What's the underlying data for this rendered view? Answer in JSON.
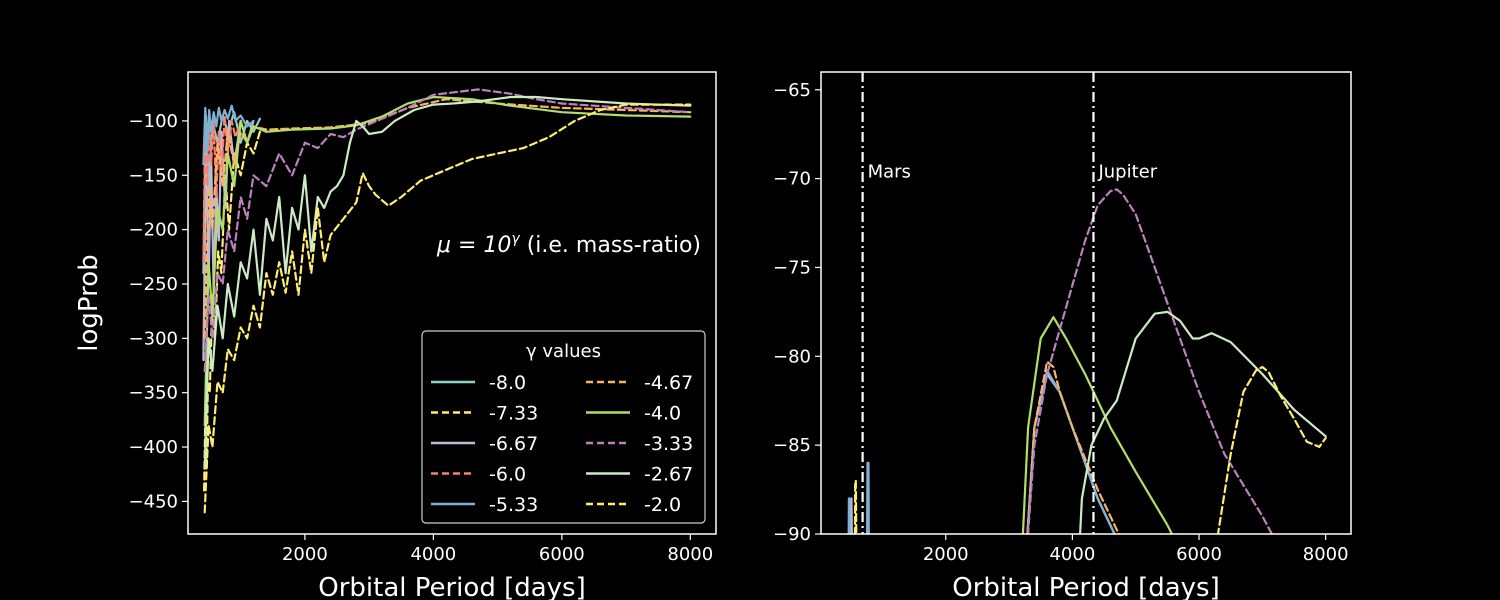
{
  "chart_data": [
    {
      "type": "line",
      "xlabel": "Orbital Period [days]",
      "ylabel": "logProb",
      "xlim": [
        180,
        8400
      ],
      "ylim": [
        -480,
        -55
      ],
      "xticks": [
        2000,
        4000,
        6000,
        8000
      ],
      "xtick_labels": [
        "2000",
        "4000",
        "6000",
        "8000"
      ],
      "yticks": [
        -100,
        -150,
        -200,
        -250,
        -300,
        -350,
        -400,
        -450
      ],
      "ytick_labels": [
        "−100",
        "−150",
        "−200",
        "−250",
        "−300",
        "−350",
        "−400",
        "−450"
      ],
      "annotation": {
        "math": "μ = 10",
        "superscript": "γ",
        "rest": " (i.e. mass-ratio)"
      },
      "legend": {
        "title": "γ values",
        "placement": "lower right",
        "columns": 2
      },
      "grid": false,
      "series": [
        {
          "name": "-8.0",
          "color": "#8dd3c7",
          "dash": "solid",
          "x": [
            420,
            460,
            500,
            560,
            640,
            720,
            800,
            900,
            1000,
            1100,
            1200,
            1300
          ],
          "y": [
            -240,
            -95,
            -160,
            -100,
            -120,
            -95,
            -110,
            -92,
            -120,
            -100,
            -110,
            -98
          ]
        },
        {
          "name": "-7.33",
          "color": "#ffed6f",
          "dash": "dashed",
          "x": [
            430,
            450,
            470,
            490,
            520,
            560,
            600,
            650,
            700,
            760,
            820,
            900,
            1000,
            1100,
            1200,
            1300
          ],
          "y": [
            -440,
            -370,
            -420,
            -340,
            -350,
            -260,
            -300,
            -220,
            -240,
            -150,
            -200,
            -130,
            -150,
            -120,
            -130,
            -110
          ]
        },
        {
          "name": "-6.67",
          "color": "#bebada",
          "dash": "solid",
          "x": [
            420,
            460,
            500,
            540,
            580,
            620,
            660,
            700,
            760,
            820,
            900,
            1000,
            1100,
            1200
          ],
          "y": [
            -320,
            -120,
            -250,
            -130,
            -260,
            -160,
            -210,
            -110,
            -180,
            -100,
            -140,
            -100,
            -120,
            -100
          ]
        },
        {
          "name": "-6.0",
          "color": "#fb8072",
          "dash": "dashed",
          "x": [
            420,
            450,
            480,
            510,
            540,
            580,
            620,
            660,
            700,
            750,
            800,
            860,
            920,
            1000
          ],
          "y": [
            -230,
            -90,
            -160,
            -95,
            -140,
            -100,
            -170,
            -110,
            -150,
            -95,
            -130,
            -100,
            -115,
            -100
          ]
        },
        {
          "name": "-5.33",
          "color": "#80b1d3",
          "dash": "solid",
          "x": [
            420,
            450,
            480,
            510,
            540,
            580,
            620,
            660,
            700,
            750,
            800,
            860,
            920,
            1000,
            1100,
            1200
          ],
          "y": [
            -140,
            -88,
            -130,
            -90,
            -110,
            -92,
            -105,
            -88,
            -100,
            -90,
            -98,
            -86,
            -100,
            -95,
            -105,
            -100
          ]
        },
        {
          "name": "-4.67",
          "color": "#fdb462",
          "dash": "dashed",
          "x": [
            440,
            500,
            560,
            640,
            720,
            800,
            900,
            1000,
            1100,
            1200,
            1400,
            1800,
            2400,
            3000,
            3600,
            4200,
            5000,
            6000,
            7000,
            8000
          ],
          "y": [
            -300,
            -160,
            -200,
            -120,
            -160,
            -110,
            -140,
            -110,
            -120,
            -105,
            -108,
            -107,
            -106,
            -102,
            -88,
            -80,
            -84,
            -88,
            -90,
            -92
          ]
        },
        {
          "name": "-4.0",
          "color": "#b3de69",
          "dash": "solid",
          "x": [
            440,
            500,
            560,
            640,
            720,
            800,
            900,
            1000,
            1100,
            1200,
            1400,
            1800,
            2400,
            2800,
            3200,
            3600,
            4000,
            4600,
            5200,
            6000,
            7000,
            8000
          ],
          "y": [
            -380,
            -230,
            -280,
            -180,
            -200,
            -130,
            -160,
            -100,
            -120,
            -105,
            -110,
            -108,
            -107,
            -104,
            -96,
            -84,
            -78,
            -80,
            -86,
            -92,
            -95,
            -96
          ]
        },
        {
          "name": "-3.33",
          "color": "#bc80bd",
          "dash": "dashed",
          "x": [
            440,
            500,
            560,
            640,
            720,
            800,
            900,
            1000,
            1100,
            1200,
            1400,
            1600,
            1800,
            2000,
            2200,
            2400,
            2600,
            2800,
            3200,
            3600,
            4000,
            4700,
            5200,
            5600,
            6000,
            7000,
            8000
          ],
          "y": [
            -330,
            -260,
            -300,
            -240,
            -250,
            -200,
            -220,
            -170,
            -190,
            -150,
            -160,
            -130,
            -150,
            -120,
            -125,
            -112,
            -115,
            -108,
            -98,
            -88,
            -76,
            -71,
            -75,
            -80,
            -84,
            -88,
            -92
          ]
        },
        {
          "name": "-2.67",
          "color": "#ccebc5",
          "dash": "solid",
          "x": [
            440,
            500,
            560,
            640,
            720,
            800,
            900,
            1000,
            1100,
            1200,
            1300,
            1400,
            1500,
            1600,
            1700,
            1800,
            1900,
            2000,
            2100,
            2200,
            2300,
            2400,
            2500,
            2600,
            2700,
            2800,
            2900,
            3000,
            3200,
            3400,
            3700,
            4000,
            4300,
            4700,
            5200,
            5600,
            6000,
            6500,
            7000,
            7500,
            8000
          ],
          "y": [
            -420,
            -300,
            -330,
            -270,
            -300,
            -250,
            -280,
            -230,
            -245,
            -200,
            -260,
            -190,
            -210,
            -170,
            -240,
            -180,
            -200,
            -150,
            -220,
            -170,
            -180,
            -165,
            -160,
            -150,
            -120,
            -100,
            -105,
            -112,
            -110,
            -100,
            -90,
            -85,
            -84,
            -82,
            -78,
            -78,
            -80,
            -82,
            -84,
            -85,
            -86
          ]
        },
        {
          "name": "-2.0",
          "color": "#ffed6f",
          "dash": "dashed",
          "x": [
            440,
            500,
            560,
            640,
            720,
            800,
            900,
            1000,
            1100,
            1200,
            1300,
            1400,
            1500,
            1600,
            1700,
            1800,
            1900,
            2000,
            2100,
            2200,
            2300,
            2400,
            2600,
            2800,
            2900,
            3000,
            3100,
            3300,
            3500,
            3800,
            4200,
            4600,
            5000,
            5400,
            5800,
            6200,
            6600,
            7000,
            7500,
            8000
          ],
          "y": [
            -460,
            -380,
            -400,
            -340,
            -350,
            -310,
            -320,
            -290,
            -300,
            -270,
            -290,
            -240,
            -260,
            -230,
            -258,
            -220,
            -260,
            -200,
            -240,
            -180,
            -230,
            -205,
            -190,
            -175,
            -148,
            -160,
            -168,
            -178,
            -170,
            -155,
            -145,
            -135,
            -130,
            -125,
            -115,
            -100,
            -90,
            -85,
            -85,
            -85
          ]
        }
      ]
    },
    {
      "type": "line",
      "xlabel": "Orbital Period [days]",
      "ylabel": "",
      "xlim": [
        30,
        8400
      ],
      "ylim": [
        -90,
        -64
      ],
      "xticks": [
        2000,
        4000,
        6000,
        8000
      ],
      "xtick_labels": [
        "2000",
        "4000",
        "6000",
        "8000"
      ],
      "yticks": [
        -65,
        -70,
        -75,
        -80,
        -85,
        -90
      ],
      "ytick_labels": [
        "−65",
        "−70",
        "−75",
        "−80",
        "−85",
        "−90"
      ],
      "grid": false,
      "vlines": [
        {
          "label": "Mars",
          "x": 687,
          "y_text": -70
        },
        {
          "label": "Jupiter",
          "x": 4333,
          "y_text": -70
        }
      ],
      "series": [
        {
          "name": "-8.0",
          "color": "#8dd3c7",
          "dash": "solid",
          "x": [
            3200,
            3400,
            3600,
            3800,
            4000,
            4400,
            4800,
            5200
          ],
          "y": [
            -95,
            -84,
            -81,
            -82,
            -84,
            -88,
            -91,
            -95
          ]
        },
        {
          "name": "-6.67",
          "color": "#bebada",
          "dash": "solid",
          "x": [
            500,
            510,
            525,
            540,
            3200,
            3400,
            3600,
            3800,
            4000,
            4400,
            4800,
            5200
          ],
          "y": [
            -95,
            -88,
            -92,
            -95,
            -95,
            -84,
            -81,
            -82,
            -84,
            -88,
            -91,
            -95
          ]
        },
        {
          "name": "-5.33",
          "color": "#80b1d3",
          "dash": "solid",
          "x": [
            460,
            470,
            480,
            490,
            750,
            765,
            780,
            790,
            3200,
            3400,
            3600,
            3800,
            4000,
            4400,
            4800,
            5200
          ],
          "y": [
            -95,
            -88,
            -88,
            -95,
            -95,
            -86,
            -86,
            -95,
            -95,
            -84,
            -80.8,
            -82,
            -84,
            -88,
            -91,
            -95
          ]
        },
        {
          "name": "-4.67",
          "color": "#fdb462",
          "dash": "dashed",
          "x": [
            3200,
            3400,
            3600,
            3700,
            3800,
            4000,
            4400,
            4800,
            5300
          ],
          "y": [
            -95,
            -84,
            -80.3,
            -80.6,
            -82,
            -84,
            -87.5,
            -90.5,
            -95
          ]
        },
        {
          "name": "-7.33",
          "color": "#ffed6f",
          "dash": "dashed",
          "x": [
            560,
            570,
            580,
            600
          ],
          "y": [
            -95,
            -87,
            -87,
            -95
          ]
        },
        {
          "name": "-4.0",
          "color": "#b3de69",
          "dash": "solid",
          "x": [
            3150,
            3300,
            3500,
            3700,
            3900,
            4200,
            4600,
            5000,
            5500,
            6000
          ],
          "y": [
            -95,
            -84,
            -79,
            -77.8,
            -79,
            -81,
            -84,
            -86.5,
            -89.5,
            -93
          ]
        },
        {
          "name": "-3.33",
          "color": "#bc80bd",
          "dash": "dashed",
          "x": [
            3200,
            3400,
            3600,
            3800,
            4000,
            4200,
            4400,
            4600,
            4700,
            4800,
            5000,
            5200,
            5600,
            6000,
            6400,
            7000,
            7600
          ],
          "y": [
            -95,
            -85,
            -81,
            -78.5,
            -76,
            -73.5,
            -71.5,
            -70.7,
            -70.6,
            -70.9,
            -72,
            -74,
            -78,
            -82,
            -85.5,
            -89,
            -93
          ]
        },
        {
          "name": "-2.67",
          "color": "#ccebc5",
          "dash": "solid",
          "x": [
            4050,
            4150,
            4300,
            4500,
            4700,
            5000,
            5300,
            5500,
            5700,
            5900,
            6000,
            6200,
            6500,
            7000,
            7500,
            8000
          ],
          "y": [
            -95,
            -88,
            -85,
            -83.5,
            -82.5,
            -79,
            -77.6,
            -77.5,
            -78,
            -79,
            -79,
            -78.7,
            -79.2,
            -81,
            -83,
            -84.5
          ]
        },
        {
          "name": "-2.0",
          "color": "#ffed6f",
          "dash": "dashed",
          "x": [
            6100,
            6300,
            6500,
            6700,
            6900,
            7000,
            7100,
            7300,
            7500,
            7700,
            7900,
            8000
          ],
          "y": [
            -95,
            -90,
            -85.5,
            -82,
            -80.8,
            -80.6,
            -80.9,
            -82.3,
            -83.5,
            -84.8,
            -85.1,
            -84.6
          ]
        }
      ]
    }
  ]
}
